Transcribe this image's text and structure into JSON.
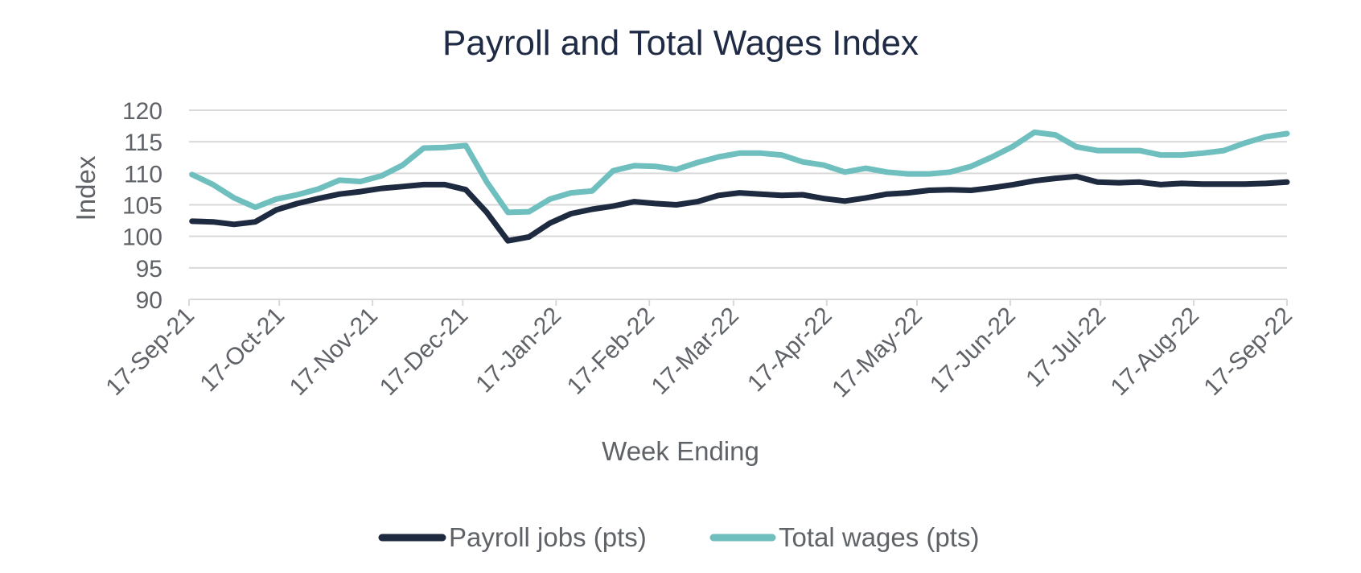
{
  "chart_data": {
    "type": "line",
    "title": "Payroll and Total Wages Index",
    "xlabel": "Week Ending",
    "ylabel": "Index",
    "ylim": [
      90,
      120
    ],
    "yticks": [
      90,
      95,
      100,
      105,
      110,
      115,
      120
    ],
    "x_tick_labels": [
      "17-Sep-21",
      "17-Oct-21",
      "17-Nov-21",
      "17-Dec-21",
      "17-Jan-22",
      "17-Feb-22",
      "17-Mar-22",
      "17-Apr-22",
      "17-May-22",
      "17-Jun-22",
      "17-Jul-22",
      "17-Aug-22",
      "17-Sep-22"
    ],
    "grid": "horizontal",
    "legend_position": "bottom",
    "x": [
      "2021-09-18",
      "2021-09-25",
      "2021-10-02",
      "2021-10-09",
      "2021-10-16",
      "2021-10-23",
      "2021-10-30",
      "2021-11-06",
      "2021-11-13",
      "2021-11-20",
      "2021-11-27",
      "2021-12-04",
      "2021-12-11",
      "2021-12-18",
      "2021-12-25",
      "2022-01-01",
      "2022-01-08",
      "2022-01-15",
      "2022-01-22",
      "2022-01-29",
      "2022-02-05",
      "2022-02-12",
      "2022-02-19",
      "2022-02-26",
      "2022-03-05",
      "2022-03-12",
      "2022-03-19",
      "2022-03-26",
      "2022-04-02",
      "2022-04-09",
      "2022-04-16",
      "2022-04-23",
      "2022-04-30",
      "2022-05-07",
      "2022-05-14",
      "2022-05-21",
      "2022-05-28",
      "2022-06-04",
      "2022-06-11",
      "2022-06-18",
      "2022-06-25",
      "2022-07-02",
      "2022-07-09",
      "2022-07-16",
      "2022-07-23",
      "2022-07-30",
      "2022-08-06",
      "2022-08-13",
      "2022-08-20",
      "2022-08-27",
      "2022-09-03",
      "2022-09-10",
      "2022-09-17"
    ],
    "series": [
      {
        "name": "Payroll jobs (pts)",
        "color": "#1e2a40",
        "values": [
          102.4,
          102.3,
          101.9,
          102.3,
          104.2,
          105.2,
          106.0,
          106.7,
          107.1,
          107.6,
          107.9,
          108.2,
          108.2,
          107.4,
          103.8,
          99.3,
          99.9,
          102.1,
          103.6,
          104.3,
          104.8,
          105.5,
          105.2,
          105.0,
          105.5,
          106.5,
          106.9,
          106.7,
          106.5,
          106.6,
          106.0,
          105.6,
          106.1,
          106.7,
          106.9,
          107.3,
          107.4,
          107.3,
          107.7,
          108.2,
          108.8,
          109.2,
          109.5,
          108.6,
          108.5,
          108.6,
          108.2,
          108.4,
          108.3,
          108.3,
          108.3,
          108.4,
          108.6
        ]
      },
      {
        "name": "Total wages (pts)",
        "color": "#6fbfbf",
        "values": [
          109.8,
          108.2,
          106.1,
          104.6,
          105.9,
          106.6,
          107.5,
          108.9,
          108.7,
          109.6,
          111.3,
          114.0,
          114.1,
          114.4,
          108.6,
          103.8,
          103.9,
          105.9,
          106.9,
          107.2,
          110.4,
          111.2,
          111.1,
          110.6,
          111.7,
          112.6,
          113.2,
          113.2,
          112.9,
          111.8,
          111.3,
          110.2,
          110.8,
          110.2,
          109.9,
          109.9,
          110.2,
          111.1,
          112.6,
          114.3,
          116.5,
          116.1,
          114.2,
          113.6,
          113.6,
          113.6,
          112.9,
          112.9,
          113.2,
          113.6,
          114.8,
          115.8,
          116.3
        ]
      }
    ]
  }
}
